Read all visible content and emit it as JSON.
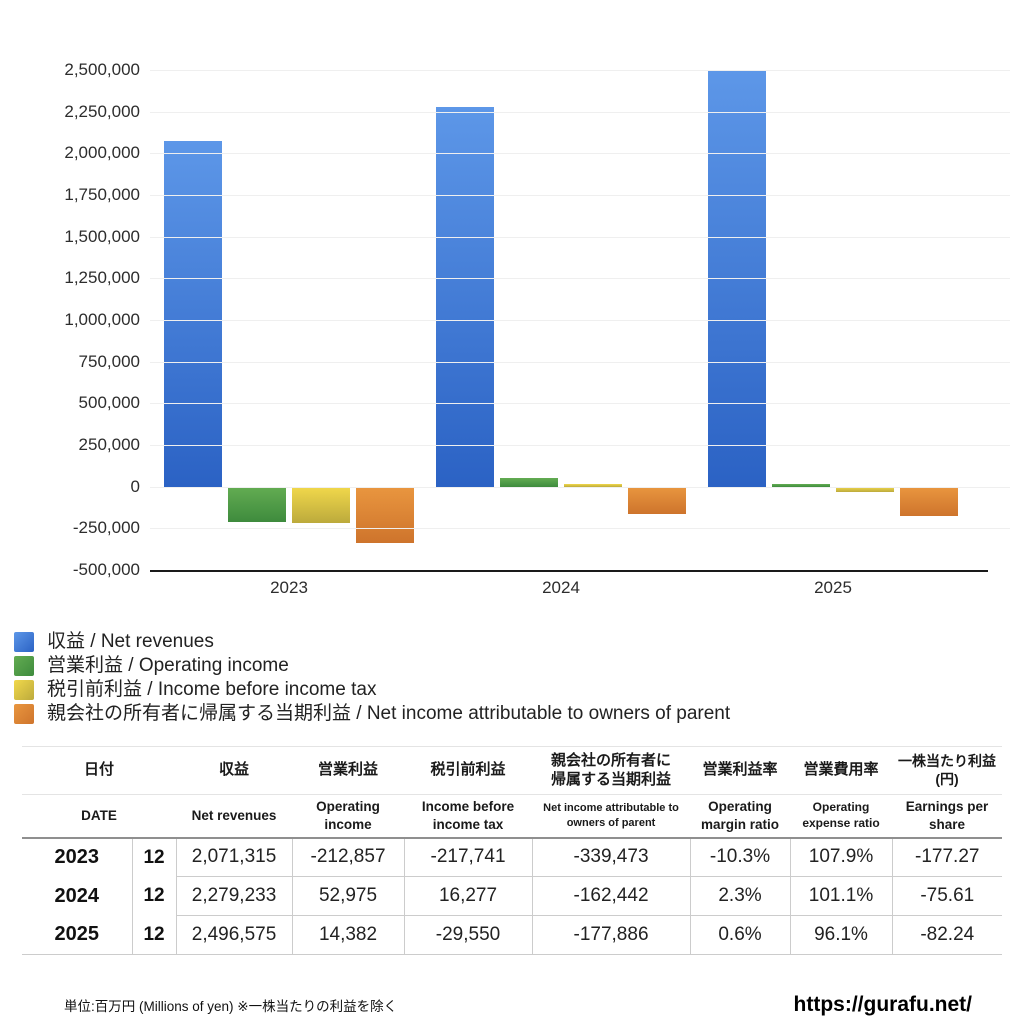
{
  "chart_data": {
    "type": "bar",
    "title": "",
    "xlabel": "",
    "ylabel": "",
    "categories": [
      "2023",
      "2024",
      "2025"
    ],
    "series": [
      {
        "key": "net-revenues",
        "name": "収益 / Net revenues",
        "color_top": "#5d97e8",
        "color_bottom": "#2b62c4",
        "values": [
          2071315,
          2279233,
          2496575
        ]
      },
      {
        "key": "operating-income",
        "name": "営業利益 / Operating income",
        "color_top": "#63ac52",
        "color_bottom": "#3e8b3d",
        "values": [
          -212857,
          52975,
          14382
        ]
      },
      {
        "key": "income-before-income-tax",
        "name": "税引前利益 / Income before income tax",
        "color_top": "#f1d84b",
        "color_bottom": "#bcaa3c",
        "values": [
          -217741,
          16277,
          -29550
        ]
      },
      {
        "key": "net-income-owners-of-parent",
        "name": "親会社の所有者に帰属する当期利益 / Net income attributable to owners of parent",
        "color_top": "#e9963f",
        "color_bottom": "#ce742c",
        "values": [
          -339473,
          -162442,
          -177886
        ]
      }
    ],
    "ylim": [
      -500000,
      2500000
    ],
    "y_tick_step": 250000,
    "y_tick_labels": [
      "2,500,000",
      "2,250,000",
      "2,000,000",
      "1,750,000",
      "1,500,000",
      "1,250,000",
      "1,000,000",
      "750,000",
      "500,000",
      "250,000",
      "0",
      "-250,000",
      "-500,000"
    ],
    "grid": true,
    "grid_color": "#efefef",
    "axis_color": "#1a1a1a",
    "legend_position": "bottom-left"
  },
  "table": {
    "header_ja": [
      "日付",
      "収益",
      "営業利益",
      "税引前利益",
      "親会社の所有者に帰属する当期利益",
      "営業利益率",
      "営業費用率",
      "一株当たり利益(円)"
    ],
    "header_en": [
      "DATE",
      "Net revenues",
      "Operating income",
      "Income before income tax",
      "Net income attributable to owners of parent",
      "Operating margin ratio",
      "Operating expense ratio",
      "Earnings per share"
    ],
    "rows": [
      {
        "year": "2023",
        "month": "12",
        "values": [
          "2,071,315",
          "-212,857",
          "-217,741",
          "-339,473",
          "-10.3%",
          "107.9%",
          "-177.27"
        ]
      },
      {
        "year": "2024",
        "month": "12",
        "values": [
          "2,279,233",
          "52,975",
          "16,277",
          "-162,442",
          "2.3%",
          "101.1%",
          "-75.61"
        ]
      },
      {
        "year": "2025",
        "month": "12",
        "values": [
          "2,496,575",
          "14,382",
          "-29,550",
          "-177,886",
          "0.6%",
          "96.1%",
          "-82.24"
        ]
      }
    ],
    "negative_color": "#dd4f3c"
  },
  "footer": {
    "note": "単位:百万円 (Millions of yen) ※一株当たりの利益を除く",
    "url": "https://gurafu.net/"
  }
}
